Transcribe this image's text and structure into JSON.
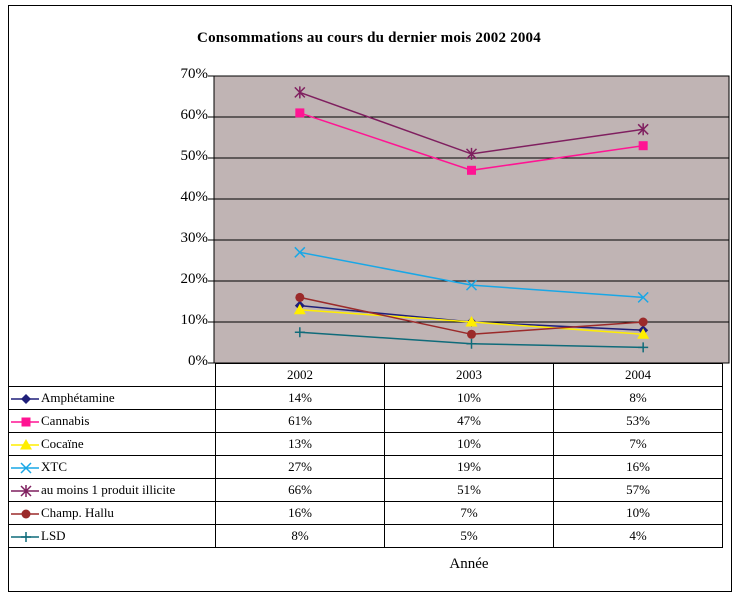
{
  "chart_data": {
    "type": "line",
    "title": "Consommations au cours du dernier mois 2002 2004",
    "xlabel": "Année",
    "ylabel": "",
    "categories": [
      "2002",
      "2003",
      "2004"
    ],
    "ylim": [
      0,
      70
    ],
    "yticks": [
      "0%",
      "10%",
      "20%",
      "30%",
      "40%",
      "50%",
      "60%",
      "70%"
    ],
    "grid": true,
    "plot_background": "#c0b4b4",
    "legend": "data-table-below",
    "series": [
      {
        "name": "Amphétamine",
        "values": [
          14,
          10,
          8
        ],
        "labels": [
          "14%",
          "10%",
          "8%"
        ],
        "color": "#1f1f7a",
        "marker": "diamond"
      },
      {
        "name": "Cannabis",
        "values": [
          61,
          47,
          53
        ],
        "labels": [
          "61%",
          "47%",
          "53%"
        ],
        "color": "#ff1493",
        "marker": "square"
      },
      {
        "name": "Cocaïne",
        "values": [
          13,
          10,
          7
        ],
        "labels": [
          "13%",
          "10%",
          "7%"
        ],
        "color": "#ffee00",
        "marker": "triangle"
      },
      {
        "name": "XTC",
        "values": [
          27,
          19,
          16
        ],
        "labels": [
          "27%",
          "19%",
          "16%"
        ],
        "color": "#19a7e6",
        "marker": "x"
      },
      {
        "name": "au moins 1 produit illicite",
        "values": [
          66,
          51,
          57
        ],
        "labels": [
          "66%",
          "51%",
          "57%"
        ],
        "color": "#7f1f5f",
        "marker": "star"
      },
      {
        "name": "Champ. Hallu",
        "values": [
          16,
          7,
          10
        ],
        "labels": [
          "16%",
          "7%",
          "10%"
        ],
        "color": "#9b2a2a",
        "marker": "circle"
      },
      {
        "name": "LSD",
        "values": [
          7.5,
          4.7,
          3.8
        ],
        "labels": [
          "8%",
          "5%",
          "4%"
        ],
        "color": "#0f6b7a",
        "marker": "plus"
      }
    ]
  }
}
